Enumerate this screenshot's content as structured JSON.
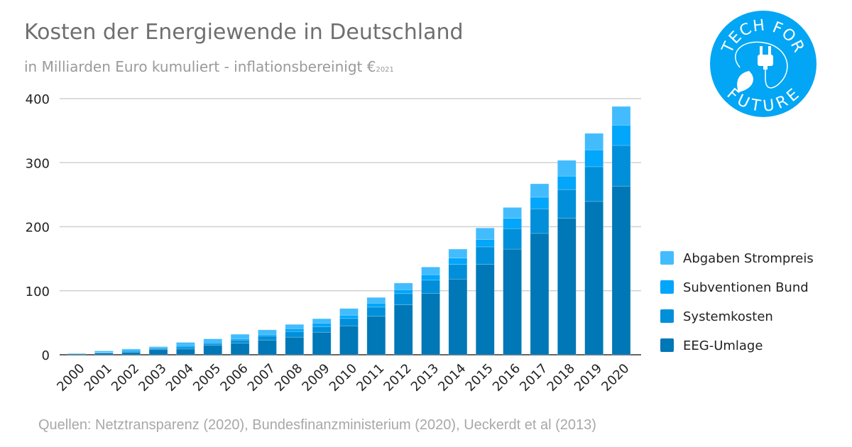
{
  "header": {
    "title": "Kosten der Energiewende in Deutschland",
    "subtitle": "in Milliarden Euro kumuliert - inflationsbereinigt €",
    "subtitle_sub": "2021"
  },
  "logo": {
    "text_top": "TECH FOR",
    "text_bottom": "FUTURE",
    "color": "#03a6f4"
  },
  "source": "Quellen: Netztransparenz (2020), Bundesfinanzministerium (2020), Ueckerdt et al (2013)",
  "chart_data": {
    "type": "bar",
    "stacked": true,
    "title": "Kosten der Energiewende in Deutschland",
    "xlabel": "",
    "ylabel": "",
    "ylim": [
      0,
      400
    ],
    "yticks": [
      "0",
      "100",
      "200",
      "300",
      "400"
    ],
    "grid": true,
    "legend_position": "right",
    "categories": [
      "2000",
      "2001",
      "2002",
      "2003",
      "2004",
      "2005",
      "2006",
      "2007",
      "2008",
      "2009",
      "2010",
      "2011",
      "2012",
      "2013",
      "2014",
      "2015",
      "2016",
      "2017",
      "2018",
      "2019",
      "2020"
    ],
    "series": [
      {
        "name": "EEG-Umlage",
        "color": "#0077b6",
        "values": [
          1.3,
          2.5,
          3.5,
          8,
          9,
          14.6,
          18,
          23,
          27.5,
          35.2,
          45.2,
          60,
          78,
          96,
          118,
          141,
          165,
          189.5,
          213,
          239.4,
          263.4
        ]
      },
      {
        "name": "Systemkosten",
        "color": "#028fd9",
        "values": [
          0.5,
          1,
          1.5,
          2,
          3.3,
          2.5,
          5,
          6.3,
          8.8,
          8.8,
          11.5,
          14.4,
          17.5,
          20.5,
          23,
          27.5,
          32,
          38.5,
          45,
          54.3,
          63.5
        ]
      },
      {
        "name": "Subventionen Bund",
        "color": "#02a6fb",
        "values": [
          0,
          0.5,
          2,
          1,
          2.2,
          2.5,
          2,
          2.5,
          4.5,
          5.3,
          5.1,
          6.2,
          6.2,
          8.5,
          10,
          11.5,
          16,
          18,
          21,
          26.3,
          31.7
        ]
      },
      {
        "name": "Abgaben Strompreis",
        "color": "#43bcfe",
        "values": [
          0,
          2,
          2,
          1.7,
          4.8,
          5.2,
          7,
          7.1,
          6.6,
          7,
          10.4,
          8.9,
          10.3,
          12,
          14,
          18,
          17,
          21,
          24.6,
          25.7,
          29.2
        ]
      }
    ],
    "legend_order": [
      "Abgaben Strompreis",
      "Subventionen Bund",
      "Systemkosten",
      "EEG-Umlage"
    ]
  }
}
